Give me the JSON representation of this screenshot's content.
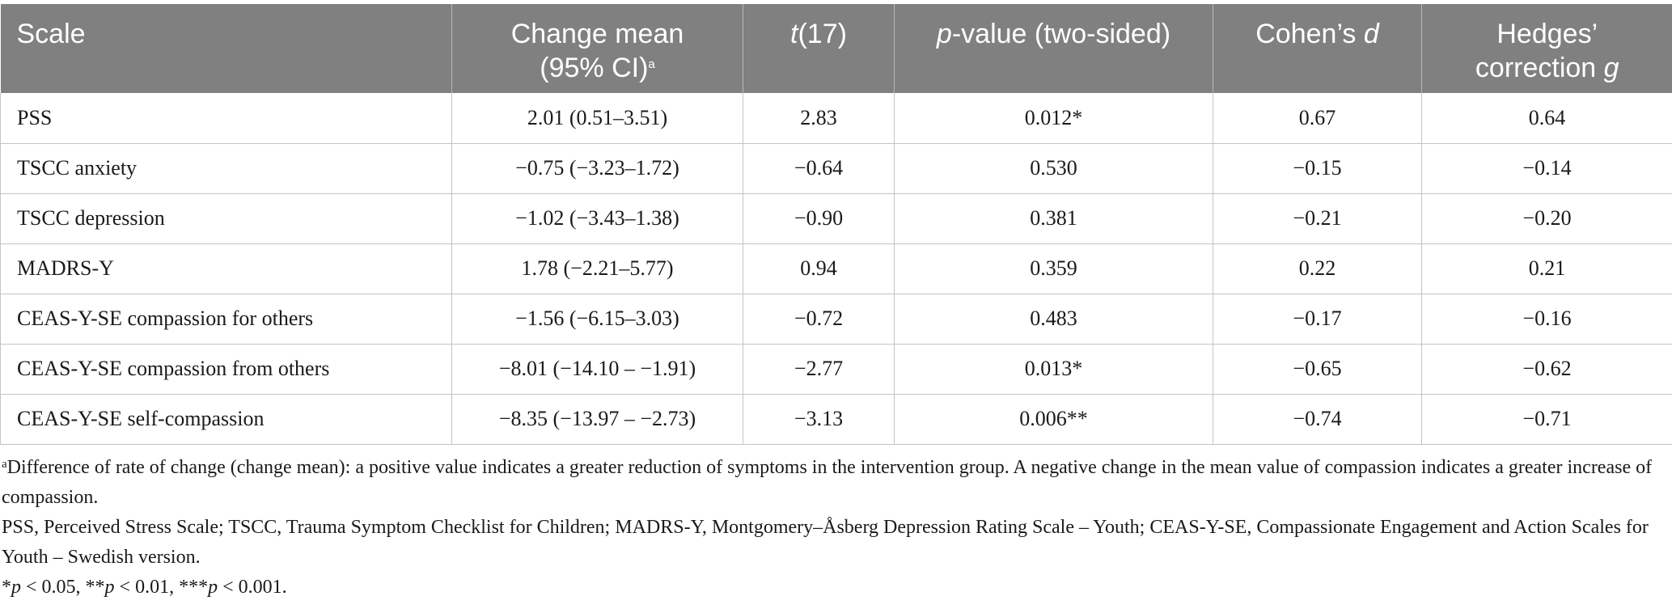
{
  "header": {
    "scale": "Scale",
    "change_mean_line1": "Change mean",
    "change_mean_line2": "(95% CI)",
    "change_mean_sup": "a",
    "t_italic": "t",
    "t_rest": "(17)",
    "p_italic": "p",
    "p_rest": "-value (two-sided)",
    "cohen_text": "Cohen’s ",
    "cohen_italic": "d",
    "hedges_line1": "Hedges’",
    "hedges_line2_text": "correction ",
    "hedges_line2_italic": "g"
  },
  "rows": [
    {
      "scale": "PSS",
      "change_mean": "2.01 (0.51–3.51)",
      "t": "2.83",
      "p": "0.012*",
      "cohen_d": "0.67",
      "hedges_g": "0.64"
    },
    {
      "scale": "TSCC anxiety",
      "change_mean": "−0.75 (−3.23–1.72)",
      "t": "−0.64",
      "p": "0.530",
      "cohen_d": "−0.15",
      "hedges_g": "−0.14"
    },
    {
      "scale": "TSCC depression",
      "change_mean": "−1.02 (−3.43–1.38)",
      "t": "−0.90",
      "p": "0.381",
      "cohen_d": "−0.21",
      "hedges_g": "−0.20"
    },
    {
      "scale": "MADRS-Y",
      "change_mean": "1.78 (−2.21–5.77)",
      "t": "0.94",
      "p": "0.359",
      "cohen_d": "0.22",
      "hedges_g": "0.21"
    },
    {
      "scale": "CEAS-Y-SE compassion for others",
      "change_mean": "−1.56 (−6.15–3.03)",
      "t": "−0.72",
      "p": "0.483",
      "cohen_d": "−0.17",
      "hedges_g": "−0.16"
    },
    {
      "scale": "CEAS-Y-SE compassion from others",
      "change_mean": "−8.01 (−14.10 – −1.91)",
      "t": "−2.77",
      "p": "0.013*",
      "cohen_d": "−0.65",
      "hedges_g": "−0.62"
    },
    {
      "scale": "CEAS-Y-SE self-compassion",
      "change_mean": "−8.35 (−13.97 – −2.73)",
      "t": "−3.13",
      "p": "0.006**",
      "cohen_d": "−0.74",
      "hedges_g": "−0.71"
    }
  ],
  "notes": {
    "footnote_a_sup": "a",
    "footnote_a": "Difference of rate of change (change mean): a positive value indicates a greater reduction of symptoms in the intervention group. A negative change in the mean value of compassion indicates a greater increase of compassion.",
    "abbreviations": "PSS, Perceived Stress Scale; TSCC, Trauma Symptom Checklist for Children; MADRS-Y, Montgomery–Åsberg Depression Rating Scale – Youth; CEAS-Y-SE, Compassionate Engagement and Action Scales for Youth – Swedish version.",
    "sig": {
      "p1_pre": "*",
      "p1_italic": "p",
      "p1_post": " < 0.05, ",
      "p2_pre": "**",
      "p2_italic": "p",
      "p2_post": " < 0.01, ",
      "p3_pre": "***",
      "p3_italic": "p",
      "p3_post": " < 0.001."
    }
  }
}
